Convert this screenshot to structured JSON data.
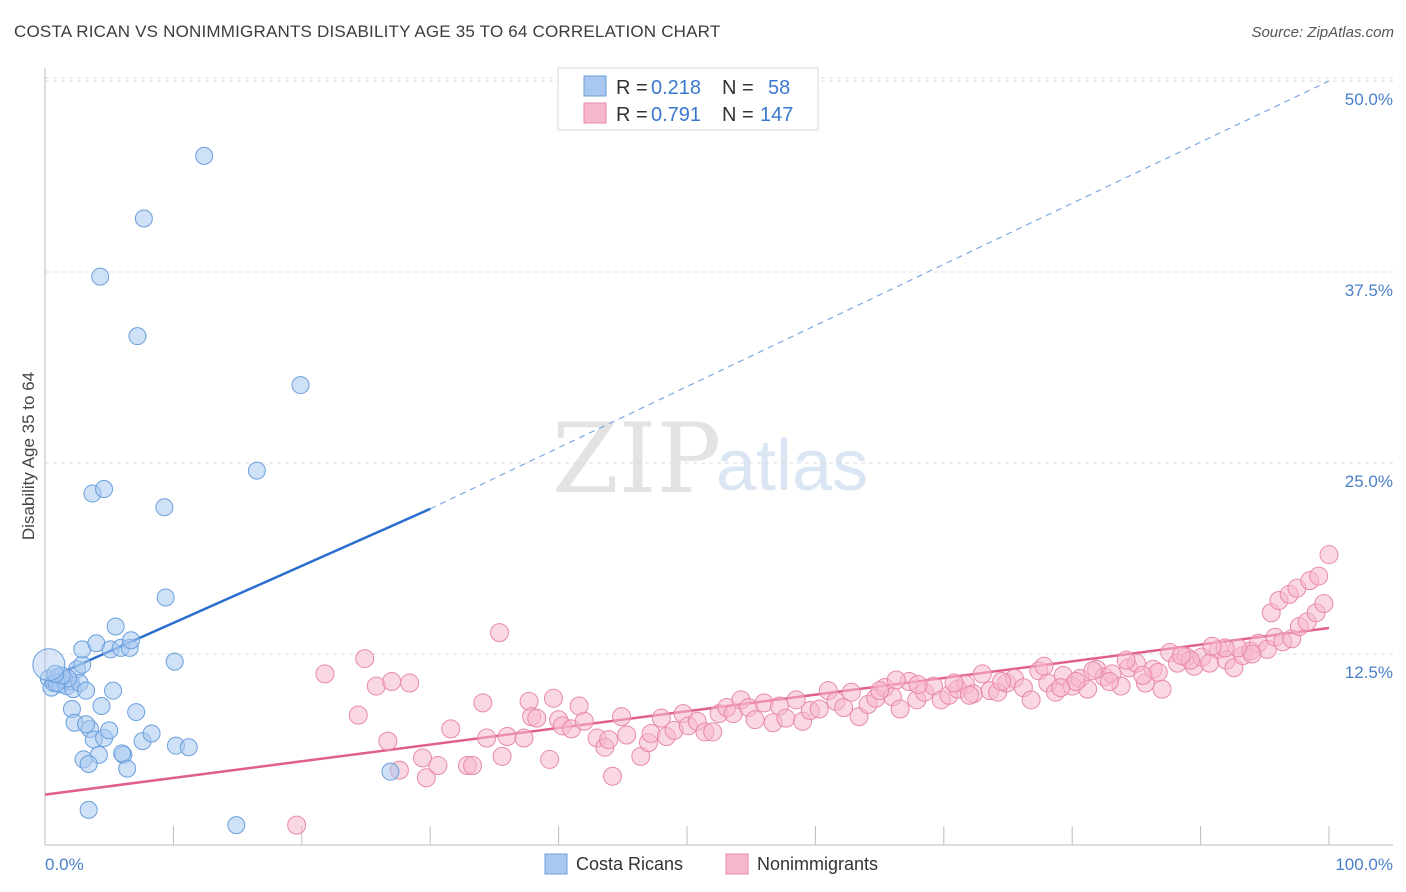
{
  "header": {
    "title": "COSTA RICAN VS NONIMMIGRANTS DISABILITY AGE 35 TO 64 CORRELATION CHART",
    "source": "Source: ZipAtlas.com"
  },
  "watermark": {
    "zip": "ZIP",
    "atlas": "atlas"
  },
  "legend": {
    "series1": {
      "r_label": "R =",
      "r_value": "0.218",
      "n_label": "N =",
      "n_value": "58"
    },
    "series2": {
      "r_label": "R =",
      "r_value": "0.791",
      "n_label": "N =",
      "n_value": "147"
    }
  },
  "bottom_legend": {
    "series1": "Costa Ricans",
    "series2": "Nonimmigrants"
  },
  "colors": {
    "blue_fill": "#a8c8f0",
    "blue_stroke": "#6a9fdc",
    "blue_line": "#2a6fd0",
    "pink_fill": "#f6b8cc",
    "pink_stroke": "#e889a8",
    "pink_line": "#e0608a",
    "grid": "#d9d9d9",
    "axis_text": "#4a7fc9"
  },
  "chart_data": {
    "type": "scatter",
    "title": "COSTA RICAN VS NONIMMIGRANTS DISABILITY AGE 35 TO 64 CORRELATION CHART",
    "xlabel": "",
    "ylabel": "Disability Age 35 to 64",
    "xlim": [
      0,
      100
    ],
    "ylim": [
      0,
      50
    ],
    "x_ticks": [
      "0.0%",
      "100.0%"
    ],
    "y_ticks": [
      {
        "value": 12.5,
        "label": "12.5%"
      },
      {
        "value": 25.0,
        "label": "25.0%"
      },
      {
        "value": 37.5,
        "label": "37.5%"
      },
      {
        "value": 50.0,
        "label": "50.0%"
      }
    ],
    "grid": true,
    "legend_position": "top-center",
    "series": [
      {
        "name": "Costa Ricans",
        "color": "#a8c8f0",
        "r": 0.218,
        "n": 58,
        "trend": {
          "x0": 0,
          "y0": 10.8,
          "x1": 30,
          "y1": 22.0,
          "dashed_to_x": 100,
          "dashed_to_y": 50.0
        },
        "points": [
          [
            0.3,
            10.9
          ],
          [
            0.5,
            10.3
          ],
          [
            0.7,
            10.6
          ],
          [
            1.0,
            11.0
          ],
          [
            1.2,
            10.5
          ],
          [
            1.5,
            10.8
          ],
          [
            1.7,
            10.4
          ],
          [
            2.0,
            10.7
          ],
          [
            2.2,
            10.2
          ],
          [
            2.5,
            11.5
          ],
          [
            2.7,
            10.6
          ],
          [
            1.8,
            10.9
          ],
          [
            0.9,
            10.6
          ],
          [
            1.3,
            11.1
          ],
          [
            2.9,
            11.8
          ],
          [
            3.2,
            10.1
          ],
          [
            2.1,
            8.9
          ],
          [
            2.3,
            8.0
          ],
          [
            2.9,
            12.8
          ],
          [
            3.5,
            7.6
          ],
          [
            3.2,
            7.9
          ],
          [
            3.8,
            6.9
          ],
          [
            4.0,
            13.2
          ],
          [
            4.2,
            5.9
          ],
          [
            4.6,
            7.0
          ],
          [
            4.4,
            9.1
          ],
          [
            5.0,
            7.5
          ],
          [
            5.1,
            12.8
          ],
          [
            5.5,
            14.3
          ],
          [
            5.3,
            10.1
          ],
          [
            5.9,
            12.9
          ],
          [
            6.1,
            5.9
          ],
          [
            6.4,
            5.0
          ],
          [
            6.6,
            12.9
          ],
          [
            6.7,
            13.4
          ],
          [
            7.1,
            8.7
          ],
          [
            7.6,
            6.8
          ],
          [
            8.3,
            7.3
          ],
          [
            3.0,
            5.6
          ],
          [
            3.4,
            5.3
          ],
          [
            3.4,
            2.3
          ],
          [
            3.7,
            23.0
          ],
          [
            4.6,
            23.3
          ],
          [
            7.7,
            41.0
          ],
          [
            7.2,
            33.3
          ],
          [
            4.3,
            37.2
          ],
          [
            12.4,
            45.1
          ],
          [
            9.3,
            22.1
          ],
          [
            9.4,
            16.2
          ],
          [
            10.2,
            6.5
          ],
          [
            10.1,
            12.0
          ],
          [
            11.2,
            6.4
          ],
          [
            14.9,
            1.3
          ],
          [
            16.5,
            24.5
          ],
          [
            19.9,
            30.1
          ],
          [
            26.9,
            4.8
          ],
          [
            6.0,
            6.0
          ],
          [
            0.8,
            11.2
          ]
        ]
      },
      {
        "name": "Nonimmigrants",
        "color": "#f6b8cc",
        "r": 0.791,
        "n": 147,
        "trend": {
          "x0": 0,
          "y0": 3.3,
          "x1": 100,
          "y1": 14.2
        },
        "points": [
          [
            19.6,
            1.3
          ],
          [
            21.8,
            11.2
          ],
          [
            24.4,
            8.5
          ],
          [
            24.9,
            12.2
          ],
          [
            25.8,
            10.4
          ],
          [
            26.7,
            6.8
          ],
          [
            27.0,
            10.7
          ],
          [
            27.6,
            4.9
          ],
          [
            28.4,
            10.6
          ],
          [
            29.4,
            5.7
          ],
          [
            29.7,
            4.4
          ],
          [
            30.6,
            5.2
          ],
          [
            31.6,
            7.6
          ],
          [
            32.9,
            5.2
          ],
          [
            33.3,
            5.2
          ],
          [
            34.1,
            9.3
          ],
          [
            34.4,
            7.0
          ],
          [
            35.4,
            13.9
          ],
          [
            35.6,
            5.8
          ],
          [
            36.0,
            7.1
          ],
          [
            37.3,
            7.0
          ],
          [
            37.7,
            9.4
          ],
          [
            37.9,
            8.4
          ],
          [
            38.3,
            8.3
          ],
          [
            39.3,
            5.6
          ],
          [
            39.6,
            9.6
          ],
          [
            40.0,
            8.2
          ],
          [
            40.3,
            7.8
          ],
          [
            41.0,
            7.6
          ],
          [
            41.6,
            9.1
          ],
          [
            42.0,
            8.1
          ],
          [
            43.0,
            7.0
          ],
          [
            43.6,
            6.4
          ],
          [
            43.9,
            6.9
          ],
          [
            44.2,
            4.5
          ],
          [
            44.9,
            8.4
          ],
          [
            45.3,
            7.2
          ],
          [
            46.4,
            5.8
          ],
          [
            47.0,
            6.7
          ],
          [
            47.2,
            7.3
          ],
          [
            48.0,
            8.3
          ],
          [
            48.4,
            7.1
          ],
          [
            49.0,
            7.5
          ],
          [
            49.7,
            8.6
          ],
          [
            50.1,
            7.8
          ],
          [
            50.8,
            8.1
          ],
          [
            51.4,
            7.4
          ],
          [
            52.0,
            7.4
          ],
          [
            52.5,
            8.6
          ],
          [
            53.1,
            9.0
          ],
          [
            53.6,
            8.6
          ],
          [
            54.2,
            9.5
          ],
          [
            54.8,
            9.0
          ],
          [
            55.3,
            8.2
          ],
          [
            56.0,
            9.3
          ],
          [
            56.7,
            8.0
          ],
          [
            57.2,
            9.1
          ],
          [
            57.7,
            8.3
          ],
          [
            58.5,
            9.5
          ],
          [
            59.0,
            8.1
          ],
          [
            59.6,
            8.8
          ],
          [
            60.3,
            8.9
          ],
          [
            61.0,
            10.1
          ],
          [
            61.6,
            9.4
          ],
          [
            62.2,
            9.0
          ],
          [
            62.8,
            10.0
          ],
          [
            63.4,
            8.4
          ],
          [
            64.1,
            9.2
          ],
          [
            64.7,
            9.6
          ],
          [
            65.4,
            10.3
          ],
          [
            66.0,
            9.7
          ],
          [
            66.6,
            8.9
          ],
          [
            67.3,
            10.7
          ],
          [
            67.9,
            9.5
          ],
          [
            68.5,
            10.0
          ],
          [
            69.2,
            10.4
          ],
          [
            69.8,
            9.5
          ],
          [
            70.4,
            9.8
          ],
          [
            71.1,
            10.2
          ],
          [
            71.7,
            10.5
          ],
          [
            72.3,
            9.9
          ],
          [
            73.0,
            11.2
          ],
          [
            73.6,
            10.1
          ],
          [
            74.2,
            10.0
          ],
          [
            74.9,
            10.6
          ],
          [
            75.5,
            10.9
          ],
          [
            76.2,
            10.3
          ],
          [
            76.8,
            9.5
          ],
          [
            77.4,
            11.4
          ],
          [
            78.1,
            10.6
          ],
          [
            78.7,
            10.0
          ],
          [
            79.3,
            11.1
          ],
          [
            80.0,
            10.4
          ],
          [
            80.6,
            10.9
          ],
          [
            81.2,
            10.2
          ],
          [
            81.9,
            11.5
          ],
          [
            82.5,
            11.0
          ],
          [
            83.1,
            11.2
          ],
          [
            83.8,
            10.4
          ],
          [
            84.4,
            11.6
          ],
          [
            85.0,
            11.9
          ],
          [
            85.7,
            10.6
          ],
          [
            86.3,
            11.5
          ],
          [
            87.0,
            10.2
          ],
          [
            87.6,
            12.6
          ],
          [
            88.2,
            11.9
          ],
          [
            88.9,
            12.3
          ],
          [
            89.5,
            11.7
          ],
          [
            90.1,
            12.3
          ],
          [
            90.7,
            11.9
          ],
          [
            91.4,
            12.8
          ],
          [
            92.0,
            12.1
          ],
          [
            92.6,
            11.6
          ],
          [
            93.3,
            12.4
          ],
          [
            93.9,
            12.7
          ],
          [
            94.5,
            13.2
          ],
          [
            95.2,
            12.8
          ],
          [
            95.8,
            13.6
          ],
          [
            96.4,
            13.3
          ],
          [
            97.1,
            13.5
          ],
          [
            97.7,
            14.3
          ],
          [
            98.3,
            14.6
          ],
          [
            99.0,
            15.2
          ],
          [
            99.6,
            15.8
          ],
          [
            100.0,
            19.0
          ],
          [
            95.5,
            15.2
          ],
          [
            96.1,
            16.0
          ],
          [
            96.9,
            16.4
          ],
          [
            97.5,
            16.8
          ],
          [
            98.5,
            17.3
          ],
          [
            99.2,
            17.6
          ],
          [
            94.0,
            12.5
          ],
          [
            92.9,
            12.9
          ],
          [
            91.9,
            12.9
          ],
          [
            90.9,
            13.0
          ],
          [
            89.2,
            12.1
          ],
          [
            88.5,
            12.4
          ],
          [
            86.7,
            11.3
          ],
          [
            85.5,
            11.1
          ],
          [
            84.2,
            12.1
          ],
          [
            82.9,
            10.7
          ],
          [
            81.6,
            11.4
          ],
          [
            80.3,
            10.7
          ],
          [
            79.1,
            10.3
          ],
          [
            77.8,
            11.7
          ],
          [
            74.5,
            10.7
          ],
          [
            72.0,
            9.8
          ],
          [
            70.8,
            10.6
          ],
          [
            68.0,
            10.5
          ],
          [
            66.3,
            10.8
          ],
          [
            65.0,
            10.1
          ]
        ]
      }
    ]
  }
}
